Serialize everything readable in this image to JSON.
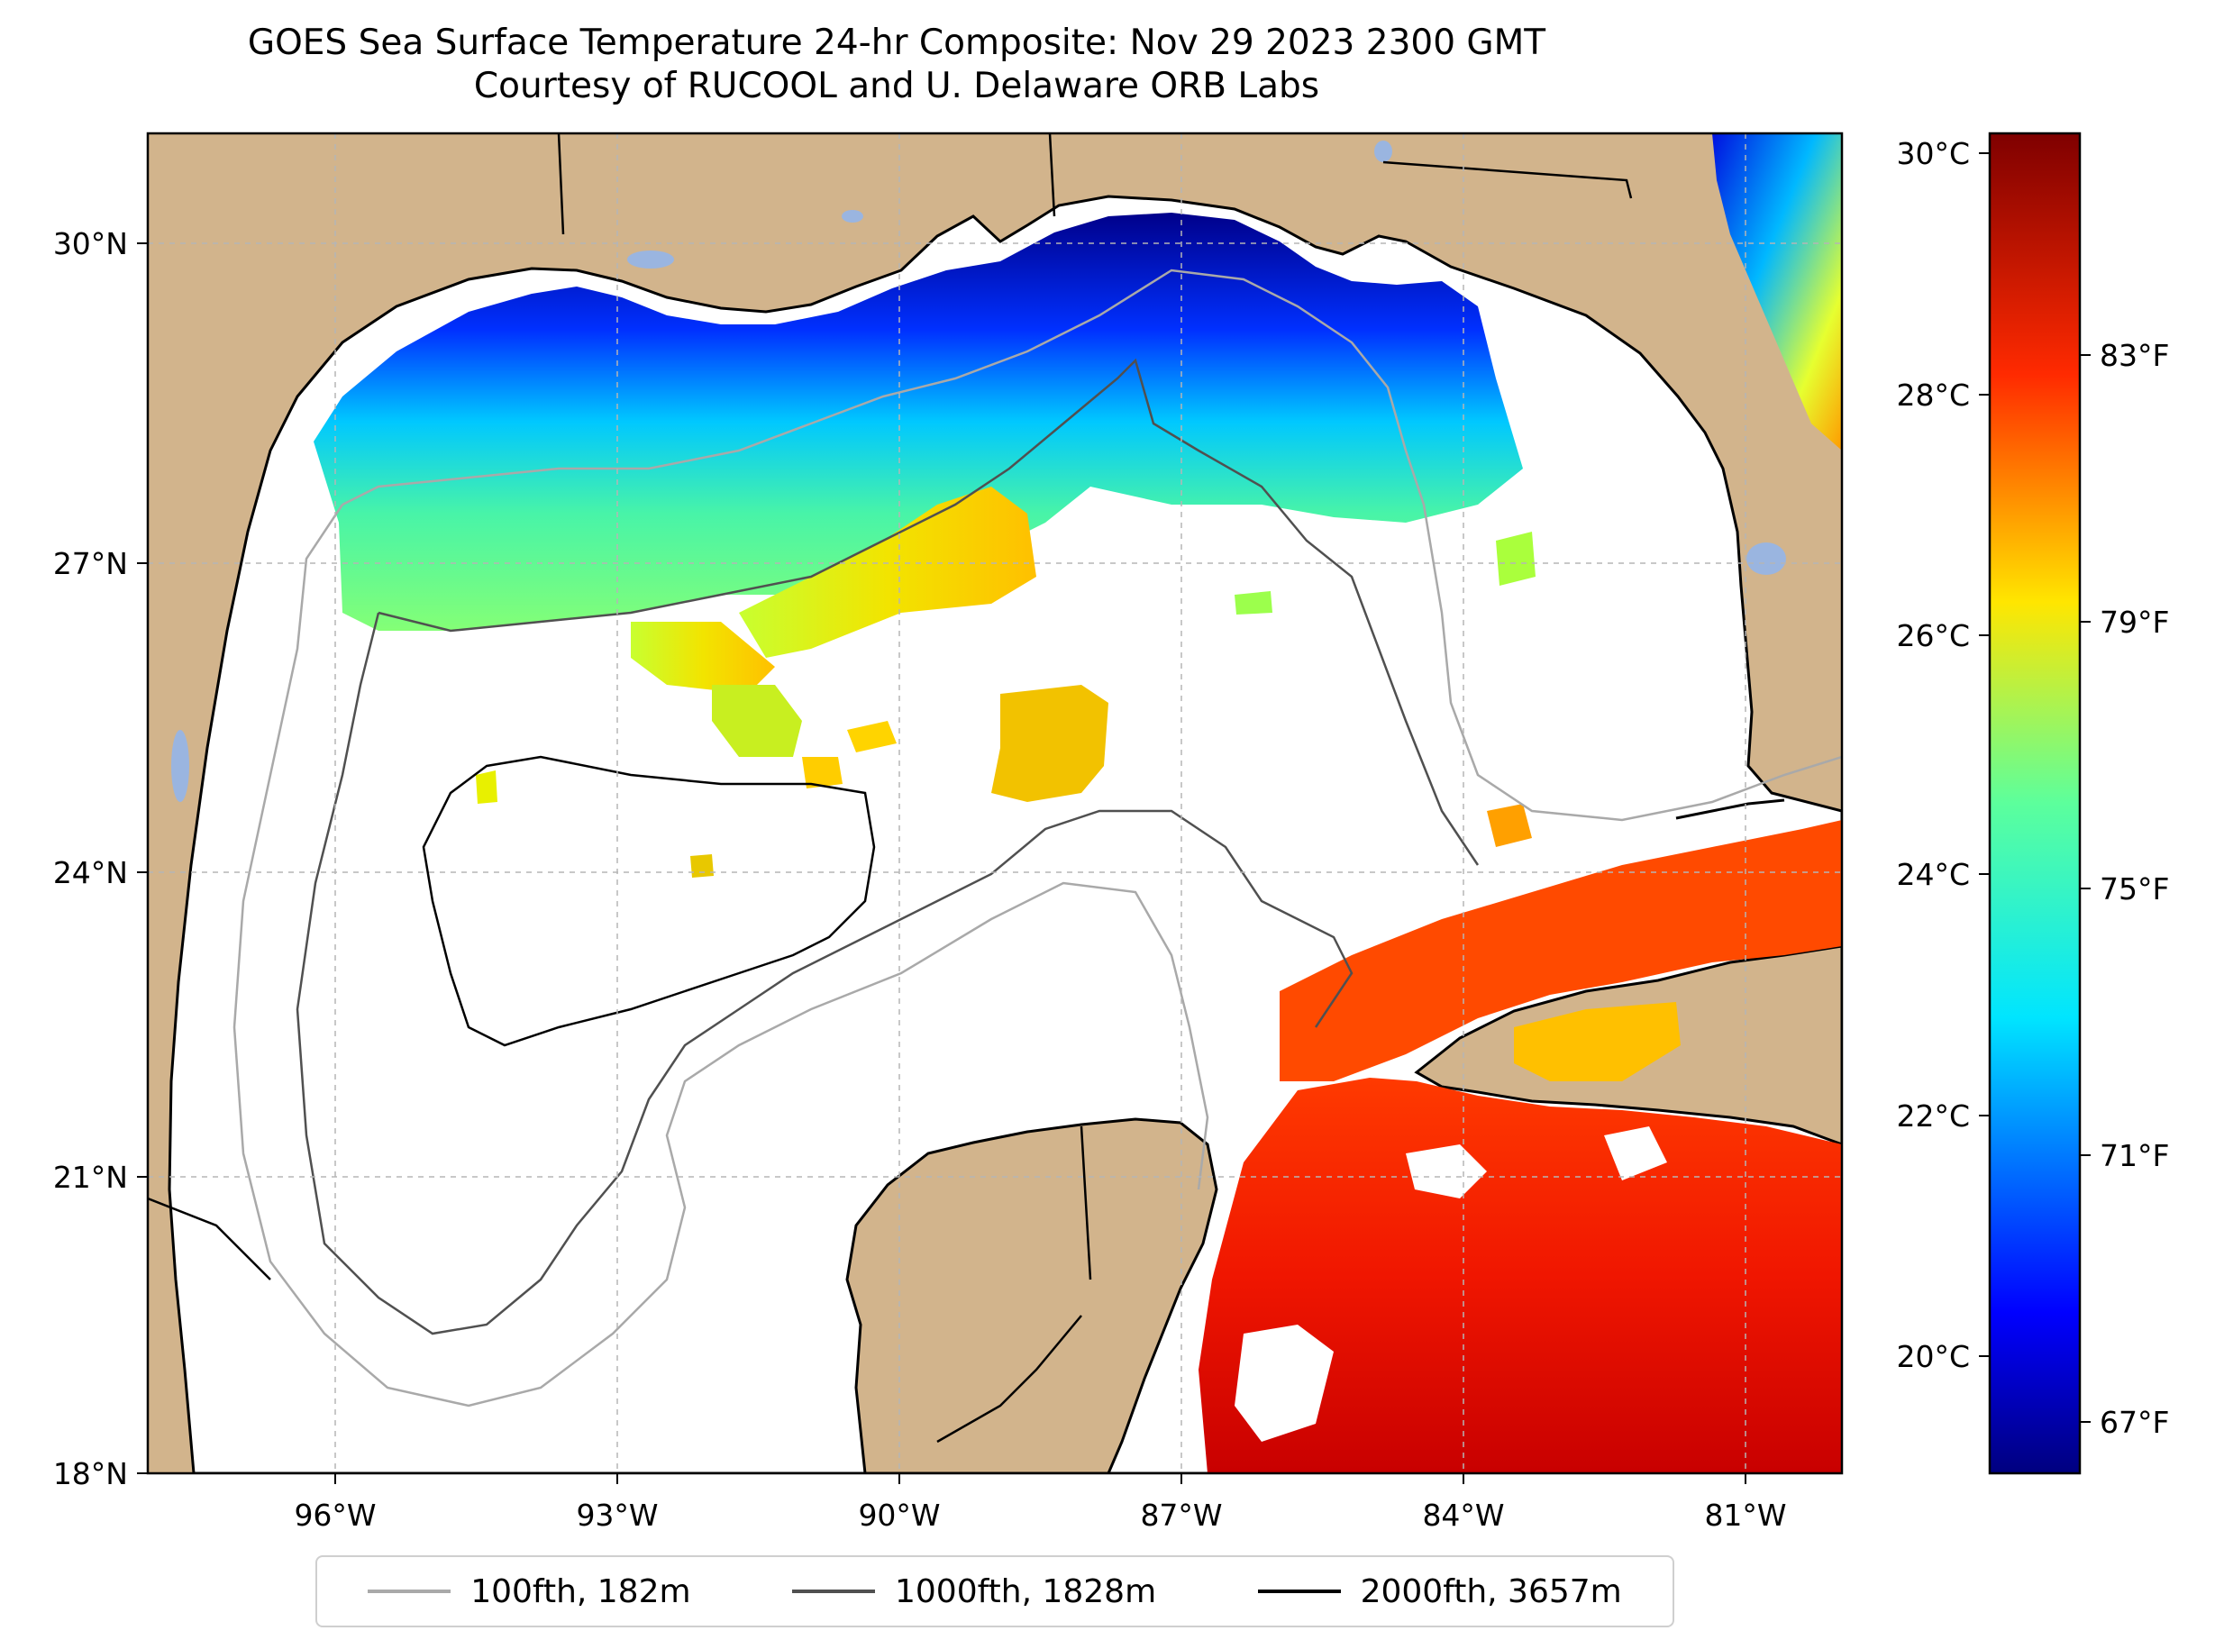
{
  "title": {
    "line1": "GOES Sea Surface Temperature 24-hr Composite: Nov 29 2023 2300 GMT",
    "line2": "Courtesy of RUCOOL and U. Delaware ORB Labs"
  },
  "map": {
    "region": "Gulf of Mexico",
    "extent": {
      "lon": [
        -98,
        -80
      ],
      "lat": [
        18,
        31
      ]
    },
    "latitude_labels": [
      "30°N",
      "27°N",
      "24°N",
      "21°N",
      "18°N"
    ],
    "latitude_values": [
      30,
      27,
      24,
      21,
      18
    ],
    "longitude_labels": [
      "96°W",
      "93°W",
      "90°W",
      "87°W",
      "84°W",
      "81°W"
    ],
    "longitude_values": [
      -96,
      -93,
      -90,
      -87,
      -84,
      -81
    ],
    "colors": {
      "land": "#d2b48c",
      "ocean": "#ffffff",
      "lakes": "#9ab5e0",
      "grid": "#b5b5b5"
    }
  },
  "colorbar": {
    "celsius_labels": [
      "30°C",
      "28°C",
      "26°C",
      "24°C",
      "22°C",
      "20°C"
    ],
    "celsius_values": [
      30,
      28,
      26,
      24,
      22,
      20
    ],
    "fahrenheit_labels": [
      "83°F",
      "79°F",
      "75°F",
      "71°F",
      "67°F"
    ],
    "fahrenheit_values": [
      83,
      79,
      75,
      71,
      67
    ],
    "range_celsius": [
      19,
      30.2
    ],
    "colormap": "jet"
  },
  "legend": {
    "items": [
      {
        "label": "100fth, 182m",
        "color": "#a9a9a9"
      },
      {
        "label": "1000fth, 1828m",
        "color": "#505050"
      },
      {
        "label": "2000fth, 3657m",
        "color": "#000000"
      }
    ]
  }
}
